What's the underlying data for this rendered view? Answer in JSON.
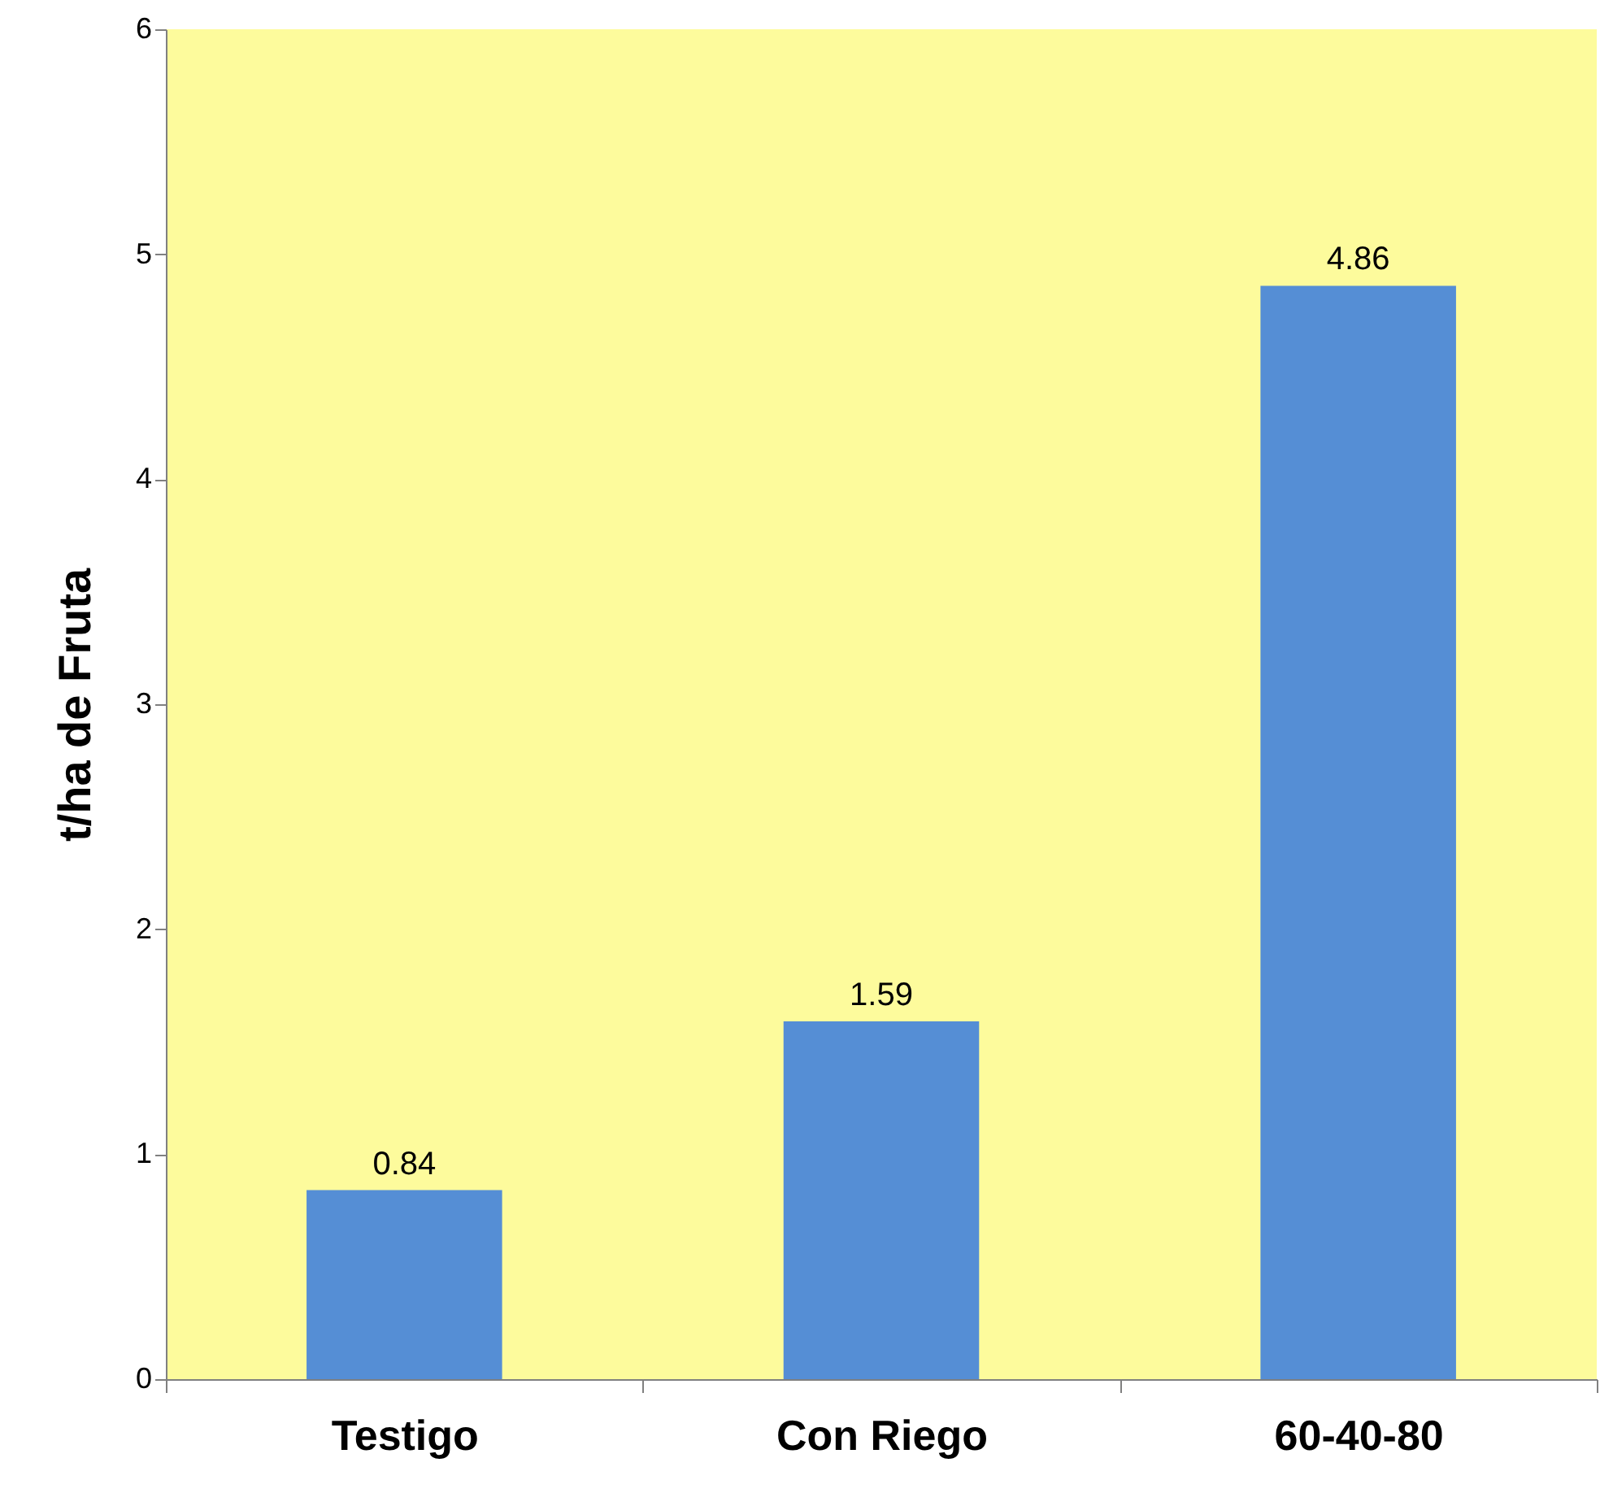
{
  "chart_data": {
    "type": "bar",
    "ylabel": "t/ha de Fruta",
    "categories": [
      "Testigo",
      "Con Riego",
      "60-40-80"
    ],
    "values": [
      0.84,
      1.59,
      4.86
    ],
    "color": "#558ed5",
    "ylim": [
      0,
      6
    ],
    "yticks": [
      0,
      1,
      2,
      3,
      4,
      5,
      6
    ],
    "grid": false,
    "data_labels": true
  }
}
